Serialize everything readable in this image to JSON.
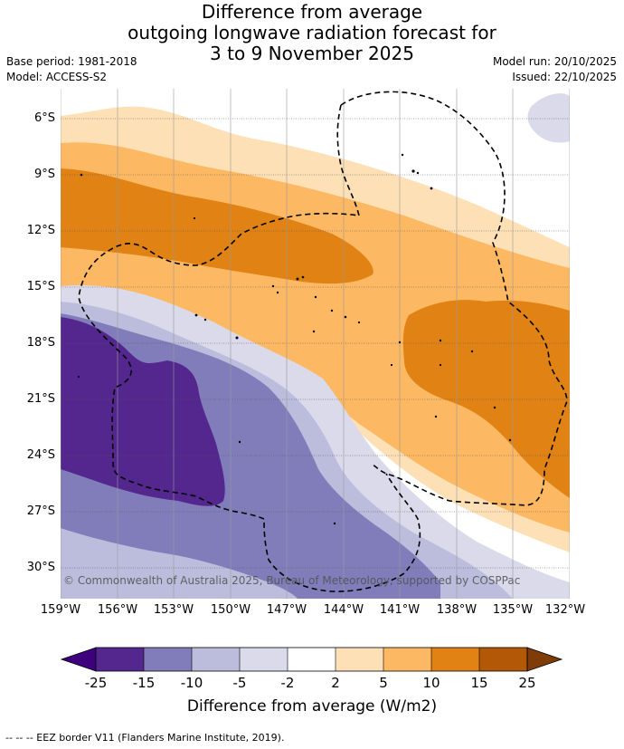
{
  "title": {
    "line1": "Difference from average",
    "line2": "outgoing longwave radiation forecast for",
    "line3": "3 to 9 November 2025"
  },
  "meta": {
    "base_period": "Base period: 1981-2018",
    "model": "Model: ACCESS-S2",
    "model_run": "Model run: 20/10/2025",
    "issued": "Issued: 22/10/2025"
  },
  "map": {
    "lat_labels": [
      "6°S",
      "9°S",
      "12°S",
      "15°S",
      "18°S",
      "21°S",
      "24°S",
      "27°S",
      "30°S"
    ],
    "lon_labels": [
      "159°W",
      "156°W",
      "153°W",
      "150°W",
      "147°W",
      "144°W",
      "141°W",
      "138°W",
      "135°W",
      "132°W"
    ],
    "copyright": "© Commonwealth of Australia 2025, Bureau of Meteorology, supported by COSPPac"
  },
  "colorbar": {
    "ticks": [
      "-25",
      "-15",
      "-10",
      "-5",
      "-2",
      "2",
      "5",
      "10",
      "15",
      "25"
    ],
    "colors": [
      "#3f007d",
      "#54278f",
      "#807dba",
      "#bcbddc",
      "#dadaeb",
      "#ffffff",
      "#fee0b6",
      "#fdb863",
      "#e08214",
      "#b35806",
      "#7f3b08"
    ],
    "label": "Difference from average (W/m2)"
  },
  "footer": "-- -- -- EEZ border V11 (Flanders Marine Institute, 2019)."
}
